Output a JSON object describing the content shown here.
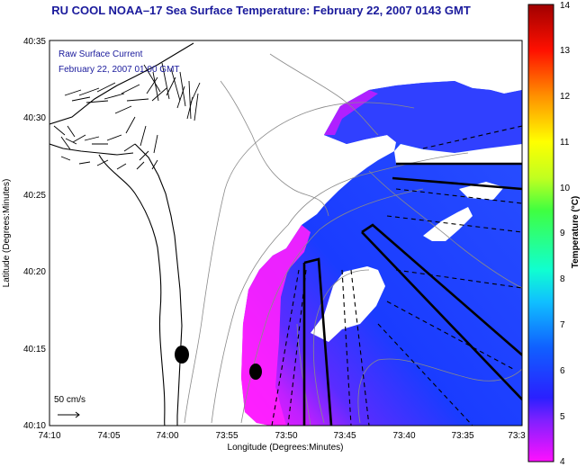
{
  "title": "RU COOL  NOAA–17  Sea Surface Temperature:  February 22, 2007 0143 GMT",
  "overlay": {
    "line1": "Raw Surface Current",
    "line2": "February 22, 2007 01:00 GMT"
  },
  "scale_label": "50 cm/s",
  "axes": {
    "ylabel": "Latitude (Degrees:Minutes)",
    "xlabel": "Longitude (Degrees:Minutes)",
    "yticks": [
      "40:35",
      "40:30",
      "40:25",
      "40:20",
      "40:15",
      "40:10"
    ],
    "xticks": [
      "74:10",
      "74:05",
      "74:00",
      "73:55",
      "73:50",
      "73:45",
      "73:40",
      "73:35",
      "73:3"
    ]
  },
  "colorbar": {
    "label": "Temperature (°C)",
    "ticks": [
      "14",
      "13",
      "12",
      "11",
      "10",
      "9",
      "8",
      "7",
      "6",
      "5",
      "4"
    ],
    "min": 4,
    "max": 14
  },
  "colors": {
    "title": "#1a1a9c",
    "sst_cold": "#ff20ff",
    "sst_warm": "#1e3cff",
    "cloud": "#ffffff"
  }
}
